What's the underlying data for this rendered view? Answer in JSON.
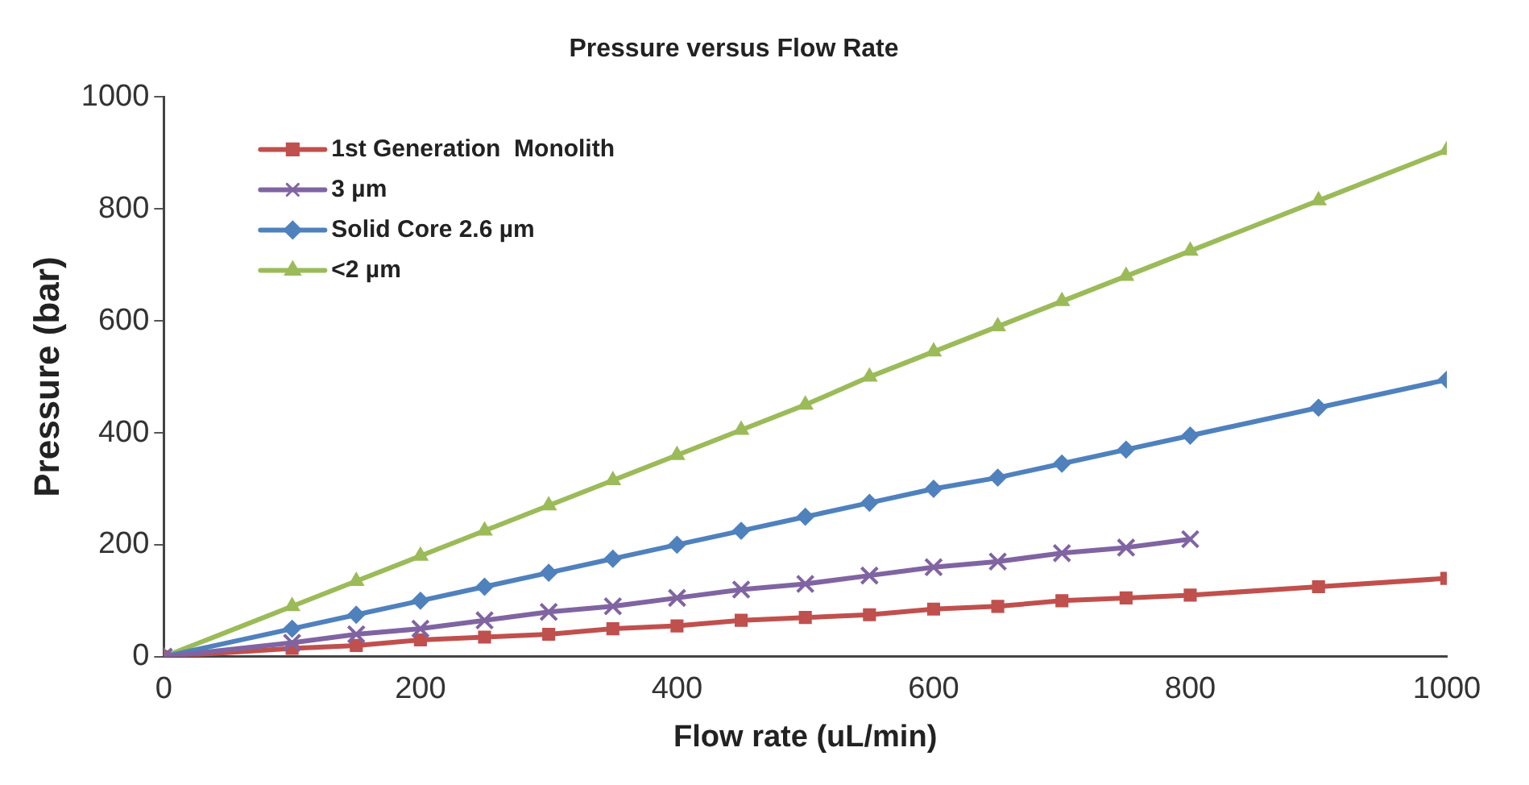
{
  "chart_data": {
    "type": "line",
    "title": "Pressure versus Flow Rate",
    "xlabel": "Flow rate (uL/min)",
    "ylabel": "Pressure (bar)",
    "x": [
      0,
      100,
      150,
      200,
      250,
      300,
      350,
      400,
      450,
      500,
      550,
      600,
      650,
      700,
      750,
      800,
      900,
      1000
    ],
    "series": [
      {
        "name": "1st Generation  Monolith",
        "color": "#c0504d",
        "marker": "square",
        "values": [
          0,
          15,
          20,
          30,
          35,
          40,
          50,
          55,
          65,
          70,
          75,
          85,
          90,
          100,
          105,
          110,
          125,
          140
        ]
      },
      {
        "name": "3 µm",
        "color": "#8064a2",
        "marker": "cross",
        "x": [
          0,
          100,
          150,
          200,
          250,
          300,
          350,
          400,
          450,
          500,
          550,
          600,
          650,
          700,
          750,
          800
        ],
        "values": [
          0,
          25,
          40,
          50,
          65,
          80,
          90,
          105,
          120,
          130,
          145,
          160,
          170,
          185,
          195,
          210
        ]
      },
      {
        "name": "Solid Core 2.6 µm",
        "color": "#4f81bd",
        "marker": "diamond",
        "values": [
          0,
          50,
          75,
          100,
          125,
          150,
          175,
          200,
          225,
          250,
          275,
          300,
          320,
          345,
          370,
          395,
          445,
          495
        ]
      },
      {
        "name": "<2 µm",
        "color": "#9bbb59",
        "marker": "triangle",
        "values": [
          0,
          90,
          135,
          180,
          225,
          270,
          315,
          360,
          405,
          450,
          500,
          545,
          590,
          635,
          680,
          725,
          815,
          905
        ]
      }
    ],
    "xlim": [
      0,
      1000
    ],
    "xticks": [
      0,
      200,
      400,
      600,
      800,
      1000
    ],
    "ylim": [
      0,
      1000
    ],
    "yticks": [
      0,
      200,
      400,
      600,
      800,
      1000
    ],
    "grid": false,
    "legend": "top left"
  }
}
